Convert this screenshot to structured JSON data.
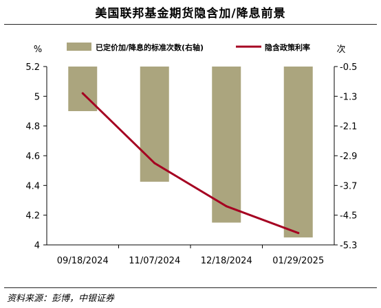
{
  "title": "美国联邦基金期货隐含加/降息前景",
  "source": "资料来源：彭博，中银证券",
  "chart_data": {
    "type": "bar+line",
    "categories": [
      "09/18/2024",
      "11/07/2024",
      "12/18/2024",
      "01/29/2025"
    ],
    "series": [
      {
        "name": "已定价加/降息的标准次数(右轴)",
        "type": "bar",
        "axis": "right",
        "color": "#aba57e",
        "values": [
          -1.7,
          -3.6,
          -4.7,
          -5.1
        ]
      },
      {
        "name": "隐含政策利率",
        "type": "line",
        "axis": "left",
        "color": "#a50021",
        "values": [
          5.02,
          4.55,
          4.26,
          4.08
        ]
      }
    ],
    "y_left": {
      "label": "%",
      "ylim": [
        4.0,
        5.2
      ],
      "ticks": [
        "5.2",
        "5",
        "4.8",
        "4.6",
        "4.4",
        "4.2",
        "4"
      ]
    },
    "y_right": {
      "label": "次",
      "ylim": [
        -5.3,
        -0.5
      ],
      "ticks": [
        "-0.5",
        "-1.3",
        "-2.1",
        "-2.9",
        "-3.7",
        "-4.5",
        "-5.3"
      ]
    },
    "legend_position": "top",
    "grid": false
  }
}
